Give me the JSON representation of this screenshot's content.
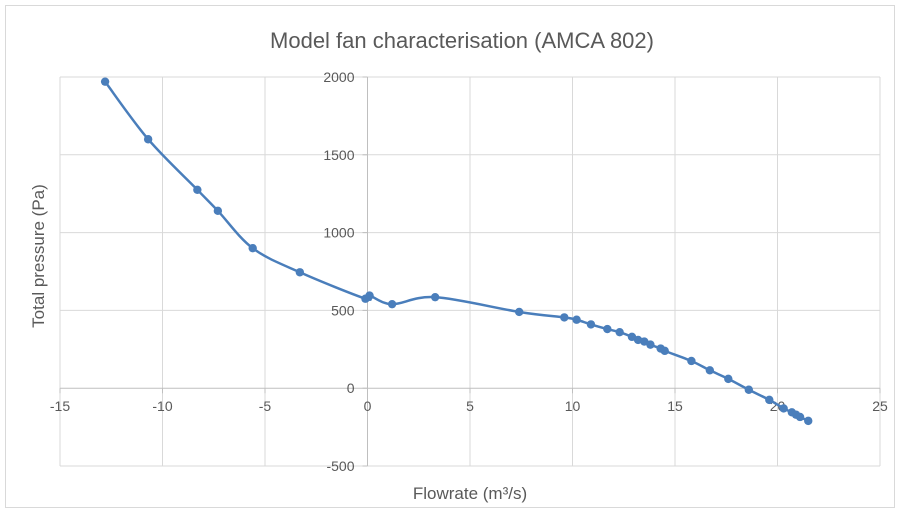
{
  "chart_data": {
    "type": "scatter",
    "title": "Model fan characterisation (AMCA 802)",
    "xlabel": "Flowrate  (m³/s)",
    "ylabel": "Total  pressure (Pa)",
    "xlim": [
      -15,
      25
    ],
    "ylim": [
      -500,
      2000
    ],
    "xticks": [
      -15,
      -10,
      -5,
      0,
      5,
      10,
      15,
      20,
      25
    ],
    "yticks": [
      -500,
      0,
      500,
      1000,
      1500,
      2000
    ],
    "grid": true,
    "legend": "none",
    "line_color": "#4a7ebb",
    "series": [
      {
        "smooth": true,
        "points": [
          [
            -12.8,
            1970
          ],
          [
            -10.7,
            1600
          ],
          [
            -8.3,
            1275
          ],
          [
            -7.3,
            1140
          ],
          [
            -5.6,
            900
          ],
          [
            -3.3,
            745
          ],
          [
            -0.1,
            575
          ],
          [
            0.1,
            595
          ],
          [
            1.2,
            540
          ],
          [
            3.3,
            585
          ],
          [
            7.4,
            490
          ],
          [
            9.6,
            455
          ],
          [
            10.2,
            440
          ],
          [
            10.9,
            410
          ],
          [
            11.7,
            380
          ],
          [
            12.3,
            360
          ],
          [
            12.9,
            330
          ],
          [
            13.2,
            310
          ],
          [
            13.5,
            300
          ],
          [
            13.8,
            280
          ],
          [
            14.3,
            255
          ],
          [
            14.5,
            240
          ],
          [
            15.8,
            175
          ],
          [
            16.7,
            115
          ],
          [
            17.6,
            60
          ],
          [
            18.6,
            -10
          ],
          [
            19.6,
            -75
          ],
          [
            20.3,
            -130
          ],
          [
            20.7,
            -155
          ],
          [
            20.9,
            -170
          ],
          [
            21.1,
            -185
          ],
          [
            21.5,
            -210
          ]
        ]
      }
    ]
  }
}
